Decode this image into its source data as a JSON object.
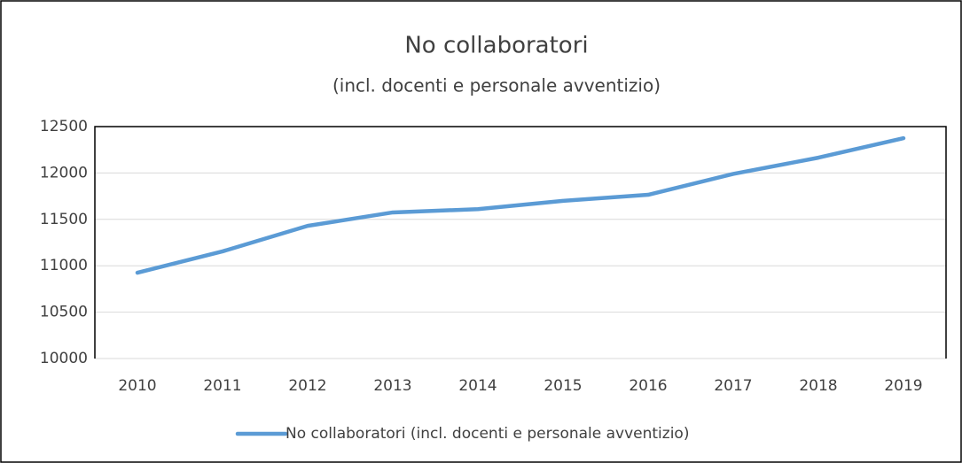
{
  "chart_data": {
    "type": "line",
    "title": "No collaboratori",
    "subtitle": "(incl. docenti e personale avventizio)",
    "categories": [
      "2010",
      "2011",
      "2012",
      "2013",
      "2014",
      "2015",
      "2016",
      "2017",
      "2018",
      "2019"
    ],
    "series": [
      {
        "name": "No collaboratori (incl. docenti e personale avventizio)",
        "color": "#5b9bd5",
        "values": [
          10925,
          11155,
          11430,
          11575,
          11610,
          11700,
          11765,
          11990,
          12165,
          12375
        ]
      }
    ],
    "ylim": [
      10000,
      12500
    ],
    "yticks": [
      10000,
      10500,
      11000,
      11500,
      12000,
      12500
    ],
    "grid": true,
    "legend": "bottom"
  }
}
